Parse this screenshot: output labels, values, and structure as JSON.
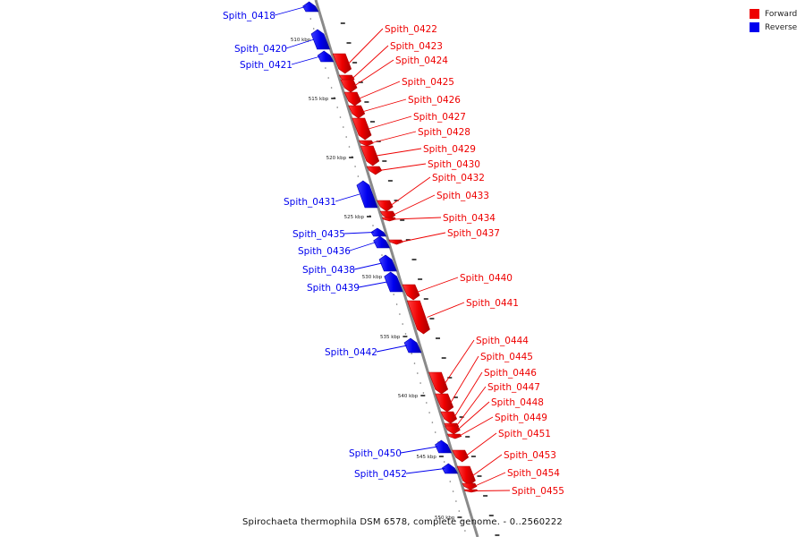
{
  "caption": "Spirochaeta thermophila DSM 6578, complete genome. - 0..2560222",
  "legend": [
    {
      "label": "Forward",
      "color": "#ee0000"
    },
    {
      "label": "Reverse",
      "color": "#0000ee"
    }
  ],
  "colors": {
    "forward": "#ee0000",
    "reverse": "#0000ee",
    "backbone": "#8a8a8a"
  },
  "kbp_ticks": [
    "510 kbp",
    "515 kbp",
    "520 kbp",
    "525 kbp",
    "530 kbp",
    "535 kbp",
    "540 kbp",
    "545 kbp",
    "550 kbp"
  ],
  "genes": [
    {
      "name": "Spith_0418",
      "strand": "reverse"
    },
    {
      "name": "Spith_0420",
      "strand": "reverse"
    },
    {
      "name": "Spith_0421",
      "strand": "reverse"
    },
    {
      "name": "Spith_0422",
      "strand": "forward"
    },
    {
      "name": "Spith_0423",
      "strand": "forward"
    },
    {
      "name": "Spith_0424",
      "strand": "forward"
    },
    {
      "name": "Spith_0425",
      "strand": "forward"
    },
    {
      "name": "Spith_0426",
      "strand": "forward"
    },
    {
      "name": "Spith_0427",
      "strand": "forward"
    },
    {
      "name": "Spith_0428",
      "strand": "forward"
    },
    {
      "name": "Spith_0429",
      "strand": "forward"
    },
    {
      "name": "Spith_0430",
      "strand": "forward"
    },
    {
      "name": "Spith_0431",
      "strand": "reverse"
    },
    {
      "name": "Spith_0432",
      "strand": "forward"
    },
    {
      "name": "Spith_0433",
      "strand": "forward"
    },
    {
      "name": "Spith_0434",
      "strand": "forward"
    },
    {
      "name": "Spith_0435",
      "strand": "reverse"
    },
    {
      "name": "Spith_0436",
      "strand": "reverse"
    },
    {
      "name": "Spith_0437",
      "strand": "forward"
    },
    {
      "name": "Spith_0438",
      "strand": "reverse"
    },
    {
      "name": "Spith_0439",
      "strand": "reverse"
    },
    {
      "name": "Spith_0440",
      "strand": "forward"
    },
    {
      "name": "Spith_0441",
      "strand": "forward"
    },
    {
      "name": "Spith_0442",
      "strand": "reverse"
    },
    {
      "name": "Spith_0444",
      "strand": "forward"
    },
    {
      "name": "Spith_0445",
      "strand": "forward"
    },
    {
      "name": "Spith_0446",
      "strand": "forward"
    },
    {
      "name": "Spith_0447",
      "strand": "forward"
    },
    {
      "name": "Spith_0448",
      "strand": "forward"
    },
    {
      "name": "Spith_0449",
      "strand": "forward"
    },
    {
      "name": "Spith_0450",
      "strand": "reverse"
    },
    {
      "name": "Spith_0451",
      "strand": "forward"
    },
    {
      "name": "Spith_0452",
      "strand": "reverse"
    },
    {
      "name": "Spith_0453",
      "strand": "forward"
    },
    {
      "name": "Spith_0454",
      "strand": "forward"
    },
    {
      "name": "Spith_0455",
      "strand": "forward"
    }
  ]
}
